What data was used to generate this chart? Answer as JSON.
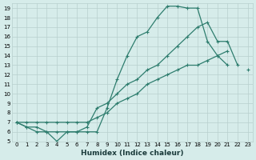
{
  "xlabel": "Humidex (Indice chaleur)",
  "bg_color": "#d6ecea",
  "grid_color": "#b8d0ce",
  "line_color": "#2e7d6e",
  "line1_y": [
    7,
    6.5,
    6,
    6,
    5,
    6,
    6,
    6,
    6,
    8.5,
    11.5,
    14,
    16,
    16.5,
    18,
    19.2,
    19.2,
    19,
    19,
    15.5,
    14,
    13,
    null,
    null
  ],
  "line2_y": [
    7,
    6.5,
    6.5,
    6,
    6,
    6,
    6,
    6.5,
    8.5,
    9,
    10,
    11,
    11.5,
    12.5,
    13,
    14,
    15,
    16,
    17,
    17.5,
    15.5,
    15.5,
    13,
    null
  ],
  "line3_y": [
    7,
    7,
    7,
    7,
    7,
    7,
    7,
    7,
    7.5,
    8,
    9,
    9.5,
    10,
    11,
    11.5,
    12,
    12.5,
    13,
    13,
    13.5,
    14,
    14.5,
    null,
    12.5
  ],
  "xlim": [
    -0.5,
    23.5
  ],
  "ylim": [
    5,
    19.5
  ],
  "xticks": [
    0,
    1,
    2,
    3,
    4,
    5,
    6,
    7,
    8,
    9,
    10,
    11,
    12,
    13,
    14,
    15,
    16,
    17,
    18,
    19,
    20,
    21,
    22,
    23
  ],
  "yticks": [
    5,
    6,
    7,
    8,
    9,
    10,
    11,
    12,
    13,
    14,
    15,
    16,
    17,
    18,
    19
  ]
}
